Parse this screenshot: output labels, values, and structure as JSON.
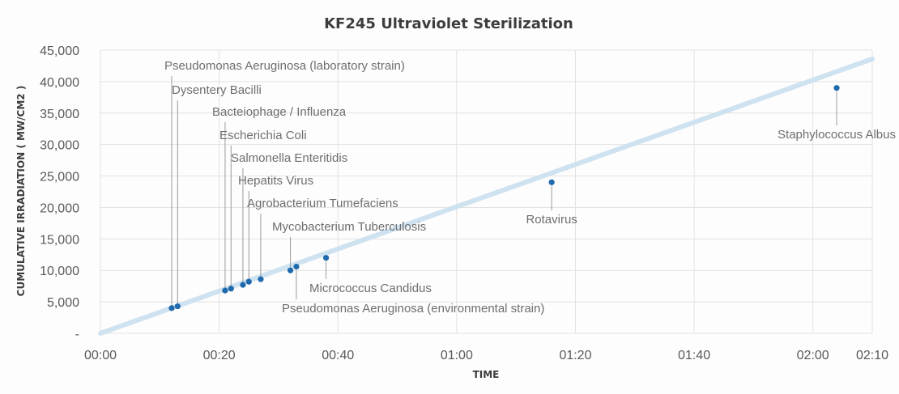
{
  "chart_data": {
    "type": "scatter",
    "title": "KF245 Ultraviolet Sterilization",
    "xlabel": "TIME",
    "ylabel": "CUMULATIVE IRRADIATION ( MW/CM2 )",
    "xlim": [
      "00:00",
      "02:10"
    ],
    "ylim": [
      0,
      45000
    ],
    "x_ticks": [
      "00:00",
      "00:20",
      "00:40",
      "01:00",
      "01:20",
      "01:40",
      "02:00",
      "02:10"
    ],
    "y_ticks": [
      "-",
      "5,000",
      "10,000",
      "15,000",
      "20,000",
      "25,000",
      "30,000",
      "35,000",
      "40,000",
      "45,000"
    ],
    "grid": true,
    "trendline": {
      "from": [
        "00:00",
        0
      ],
      "to": [
        "02:10",
        43600
      ],
      "color": "#cfe2f0"
    },
    "marker_color": "#1f6aad",
    "points": [
      {
        "label": "Pseudomonas Aeruginosa (laboratory strain)",
        "x": "00:12",
        "y": 4000
      },
      {
        "label": "Dysentery Bacilli",
        "x": "00:13",
        "y": 4300
      },
      {
        "label": "Bacteiophage / Influenza",
        "x": "00:21",
        "y": 6800
      },
      {
        "label": "Escherichia Coli",
        "x": "00:22",
        "y": 7100
      },
      {
        "label": "Salmonella Enteritidis",
        "x": "00:24",
        "y": 7700
      },
      {
        "label": "Hepatits Virus",
        "x": "00:25",
        "y": 8200
      },
      {
        "label": "Agrobacterium Tumefaciens",
        "x": "00:27",
        "y": 8600
      },
      {
        "label": "Mycobacterium Tuberculosis",
        "x": "00:32",
        "y": 10000
      },
      {
        "label": "Pseudomonas Aeruginosa (environmental strain)",
        "x": "00:33",
        "y": 10600
      },
      {
        "label": "Micrococcus Candidus",
        "x": "00:38",
        "y": 12000
      },
      {
        "label": "Rotavirus",
        "x": "01:16",
        "y": 24000
      },
      {
        "label": "Staphylococcus Albus",
        "x": "02:04",
        "y": 39000
      }
    ]
  }
}
